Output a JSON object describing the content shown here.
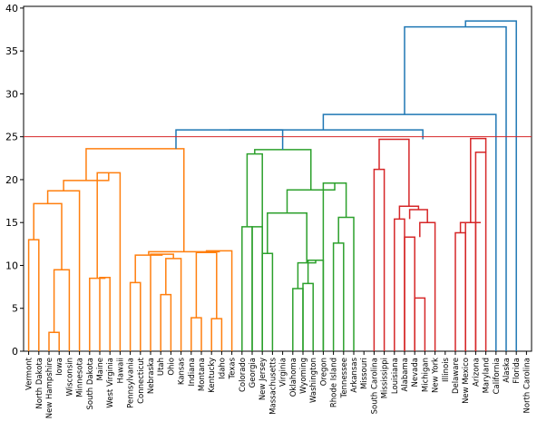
{
  "chart_data": {
    "type": "dendrogram",
    "title": "",
    "xlabel": "",
    "ylabel": "",
    "ylim": [
      0,
      40.2
    ],
    "yticks": [
      0,
      5,
      10,
      15,
      20,
      25,
      30,
      35,
      40
    ],
    "threshold": 25,
    "threshold_color": "#d62728",
    "cluster_colors": {
      "orange": "#ff7f0e",
      "green": "#2ca02c",
      "red": "#d62728",
      "blue": "#1f77b4"
    },
    "leaves": [
      "Vermont",
      "North Dakota",
      "New Hampshire",
      "Iowa",
      "Wisconsin",
      "Minnesota",
      "South Dakota",
      "Maine",
      "West Virginia",
      "Hawaii",
      "Pennsylvania",
      "Connecticut",
      "Nebraska",
      "Utah",
      "Ohio",
      "Kansas",
      "Indiana",
      "Montana",
      "Kentucky",
      "Idaho",
      "Texas",
      "Colorado",
      "Georgia",
      "New Jersey",
      "Massachusetts",
      "Virginia",
      "Oklahoma",
      "Wyoming",
      "Washington",
      "Oregon",
      "Rhode Island",
      "Tennessee",
      "Arkansas",
      "Missouri",
      "South Carolina",
      "Mississippi",
      "Louisiana",
      "Alabama",
      "Nevada",
      "Michigan",
      "New York",
      "Illinois",
      "Delaware",
      "New Mexico",
      "Arizona",
      "Maryland",
      "California",
      "Alaska",
      "Florida",
      "North Carolina"
    ],
    "merges": [
      {
        "left": 0,
        "right": 1,
        "height": 13.0,
        "color": "orange"
      },
      {
        "left": 2,
        "right": 3,
        "height": 2.2,
        "color": "orange"
      },
      {
        "left": "L2",
        "right": 4,
        "height": 9.5,
        "color": "orange"
      },
      {
        "left": "L1",
        "right": "L3",
        "height": 17.2,
        "color": "orange"
      },
      {
        "left": "L4",
        "right": 5,
        "height": 18.7,
        "color": "orange"
      },
      {
        "left": 7,
        "right": 8,
        "height": 8.6,
        "color": "orange"
      },
      {
        "left": 6,
        "right": "L6",
        "height": 8.4,
        "color": "orange"
      },
      {
        "left": "L7",
        "right": 9,
        "height": 19.9,
        "color": "orange"
      },
      {
        "left": "L5",
        "right": "L8",
        "height": 19.9,
        "color": "orange"
      },
      {
        "left": 10,
        "right": 11,
        "height": 8.0,
        "color": "orange"
      },
      {
        "left": 13,
        "right": 14,
        "height": 6.6,
        "color": "orange"
      },
      {
        "left": "L11",
        "right": 15,
        "height": 10.8,
        "color": "orange"
      },
      {
        "left": 12,
        "right": "L12",
        "height": 11.2,
        "color": "orange"
      },
      {
        "left": "L10",
        "right": "L13",
        "height": 11.0,
        "color": "orange"
      },
      {
        "left": 16,
        "right": 17,
        "height": 3.9,
        "color": "orange"
      },
      {
        "left": 18,
        "right": 19,
        "height": 3.8,
        "color": "orange"
      },
      {
        "left": "L14",
        "right": "L15",
        "height": 11.4,
        "color": "orange"
      },
      {
        "left": "L17",
        "right": 20,
        "height": 11.7,
        "color": "orange"
      },
      {
        "left": "L16",
        "right": "L18",
        "height": 11.5,
        "color": "orange"
      },
      {
        "left": "L9",
        "right": "L19",
        "height": 20.8,
        "color": "orange"
      },
      {
        "left": "L20",
        "right": "L19b",
        "height": 23.6,
        "color": "orange"
      }
    ],
    "links": [
      {
        "color": "orange",
        "xs": [
          0,
          1
        ],
        "h": [
          [
            0,
            13.0
          ],
          [
            0,
            13.0
          ]
        ]
      }
    ]
  },
  "segments_note": ""
}
